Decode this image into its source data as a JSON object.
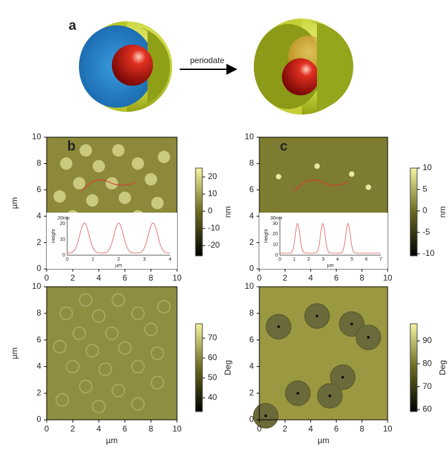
{
  "figure": {
    "label_a": "a",
    "arrow_label": "periodate",
    "panels": [
      {
        "label": "b",
        "xticks": [
          0,
          2,
          4,
          6,
          8,
          10
        ],
        "yticks": [
          0,
          2,
          4,
          6,
          8,
          10
        ],
        "ylabel": "µm",
        "colorbar": {
          "ticks": [
            20,
            10,
            0,
            -10,
            -20
          ],
          "unit": "nm"
        },
        "inset": {
          "scale": "20nm",
          "ylabel": "Height",
          "yticks": [
            0,
            10,
            20
          ],
          "xticks": [
            0,
            1,
            2,
            3,
            4
          ],
          "xlabel": "µm"
        }
      },
      {
        "label": "c",
        "xticks": [
          0,
          2,
          4,
          6,
          8,
          10
        ],
        "yticks": [
          0,
          2,
          4,
          6,
          8,
          10
        ],
        "colorbar": {
          "ticks": [
            10,
            5,
            0,
            -5,
            -10
          ],
          "unit": "nm"
        },
        "inset": {
          "scale": "30nm",
          "ylabel": "Height",
          "yticks": [
            0,
            10,
            20,
            30
          ],
          "xticks": [
            0,
            1,
            2,
            3,
            4,
            5,
            6,
            7
          ],
          "xlabel": "µm"
        }
      },
      {
        "xticks": [
          0,
          2,
          4,
          6,
          8,
          10
        ],
        "yticks": [
          0,
          2,
          4,
          6,
          8,
          10
        ],
        "ylabel": "µm",
        "xlabel": "µm",
        "colorbar": {
          "ticks": [
            70,
            60,
            50,
            40
          ],
          "unit": "Deg"
        }
      },
      {
        "xticks": [
          0,
          2,
          4,
          6,
          8,
          10
        ],
        "yticks": [
          0,
          2,
          4,
          6,
          8,
          10
        ],
        "xlabel": "µm",
        "colorbar": {
          "ticks": [
            90,
            80,
            70,
            60
          ],
          "unit": "Deg"
        }
      }
    ]
  }
}
